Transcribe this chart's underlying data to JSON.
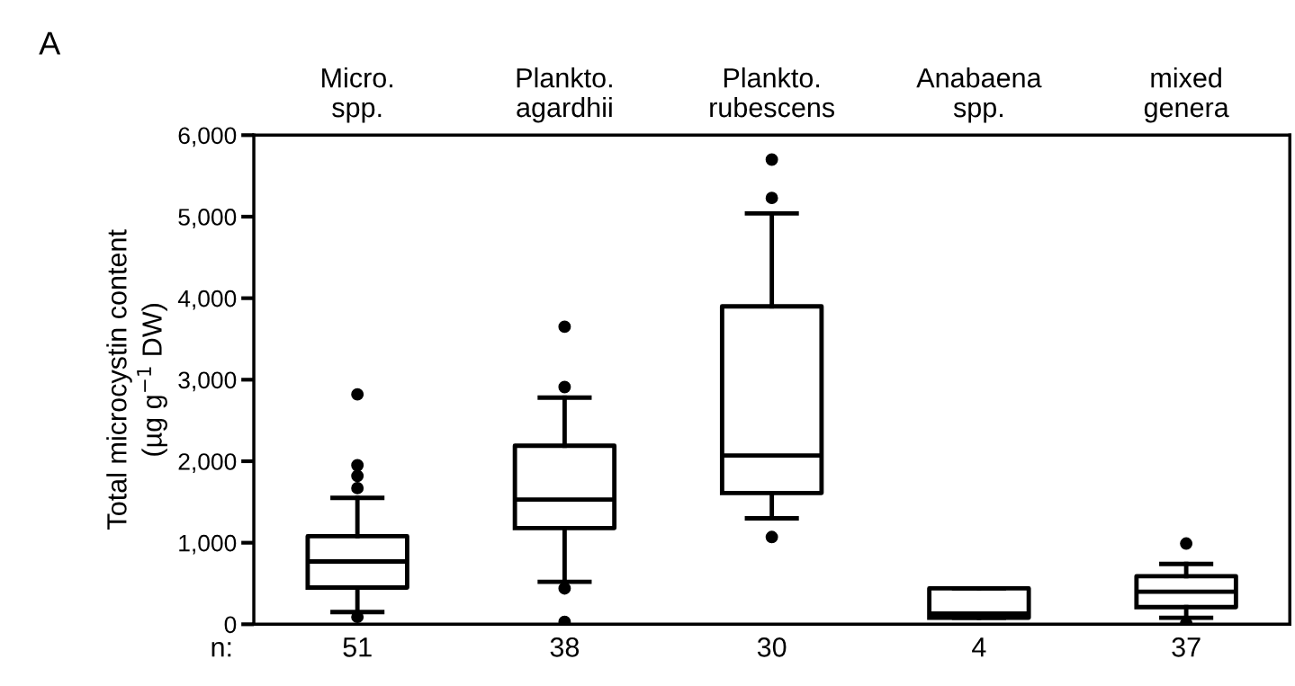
{
  "chart_data": {
    "type": "box",
    "categories": [
      "Micro.\nspp.",
      "Plankto.\nagardhii",
      "Plankto.\nrubescens",
      "Anabaena\nspp.",
      "mixed\ngenera"
    ],
    "ylabel": "Total microcystin content\n(µg g$^{−1}$ DW)",
    "ylim": [
      0,
      6000
    ],
    "yticks": [
      {
        "value": 0,
        "label": "0"
      },
      {
        "value": 1000,
        "label": "1,000"
      },
      {
        "value": 2000,
        "label": "2,000"
      },
      {
        "value": 3000,
        "label": "3,000"
      },
      {
        "value": 4000,
        "label": "4,000"
      },
      {
        "value": 5000,
        "label": "5,000"
      },
      {
        "value": 6000,
        "label": "6,000"
      }
    ],
    "color": "#000000",
    "boxes": [
      {
        "low": 150,
        "q1": 450,
        "median": 770,
        "q3": 1080,
        "high": 1550,
        "outliers": [
          2820,
          1950,
          1820,
          1670,
          90
        ]
      },
      {
        "low": 520,
        "q1": 1180,
        "median": 1530,
        "q3": 2190,
        "high": 2780,
        "outliers": [
          3650,
          2910,
          440,
          30
        ]
      },
      {
        "low": 1300,
        "q1": 1610,
        "median": 2070,
        "q3": 3900,
        "high": 5040,
        "outliers": [
          5700,
          5230,
          1070
        ]
      },
      {
        "low": 80,
        "q1": 80,
        "median": 130,
        "q3": 440,
        "high": 440
      },
      {
        "low": 80,
        "q1": 210,
        "median": 400,
        "q3": 590,
        "high": 740,
        "outliers": [
          990,
          10
        ]
      }
    ],
    "annotations": [
      "A",
      "n:",
      "51",
      "38",
      "30",
      "4",
      "37"
    ],
    "grid": false,
    "legend": false
  }
}
